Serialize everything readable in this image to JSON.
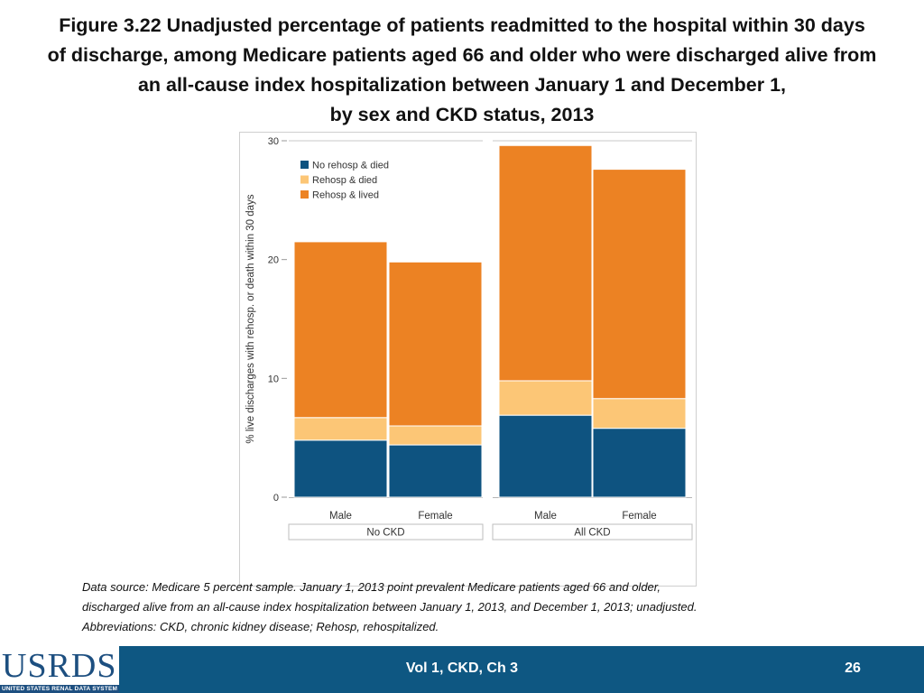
{
  "title": {
    "lines": [
      "Figure 3.22  Unadjusted percentage of patients readmitted to the hospital within 30 days",
      "of discharge, among Medicare patients aged 66 and older who were discharged alive from",
      "an all-cause index hospitalization between January 1 and December 1,",
      "by sex and CKD status, 2013"
    ]
  },
  "chart_data": {
    "type": "bar",
    "stacked": true,
    "ylabel": "% live discharges with rehosp. or death within 30 days",
    "ylim": [
      0,
      30
    ],
    "yticks": [
      0,
      10,
      20,
      30
    ],
    "groups": [
      {
        "label": "No CKD",
        "categories": [
          "Male",
          "Female"
        ]
      },
      {
        "label": "All CKD",
        "categories": [
          "Male",
          "Female"
        ]
      }
    ],
    "categories": [
      "Male",
      "Female",
      "Male",
      "Female"
    ],
    "series": [
      {
        "name": "No rehosp & died",
        "color": "#0e5380",
        "values": [
          4.8,
          4.4,
          6.9,
          5.8
        ]
      },
      {
        "name": "Rehosp & died",
        "color": "#fcc676",
        "values": [
          1.9,
          1.6,
          2.9,
          2.5
        ]
      },
      {
        "name": "Rehosp & lived",
        "color": "#ec8223",
        "values": [
          14.8,
          13.8,
          19.8,
          19.3
        ]
      }
    ],
    "legend_position": "top-left"
  },
  "notes": {
    "lines": [
      "Data source: Medicare 5 percent sample. January 1, 2013 point prevalent Medicare patients aged 66 and older,",
      "discharged alive from an all-cause index hospitalization between January 1, 2013, and December 1, 2013; unadjusted.",
      "Abbreviations: CKD, chronic kidney disease; Rehosp, rehospitalized."
    ]
  },
  "footer": {
    "logo_text": "USRDS",
    "logo_subtext": "UNITED STATES RENAL DATA SYSTEM",
    "center_text": "Vol 1, CKD, Ch 3",
    "page_number": "26",
    "bar_color": "#0e5782"
  }
}
